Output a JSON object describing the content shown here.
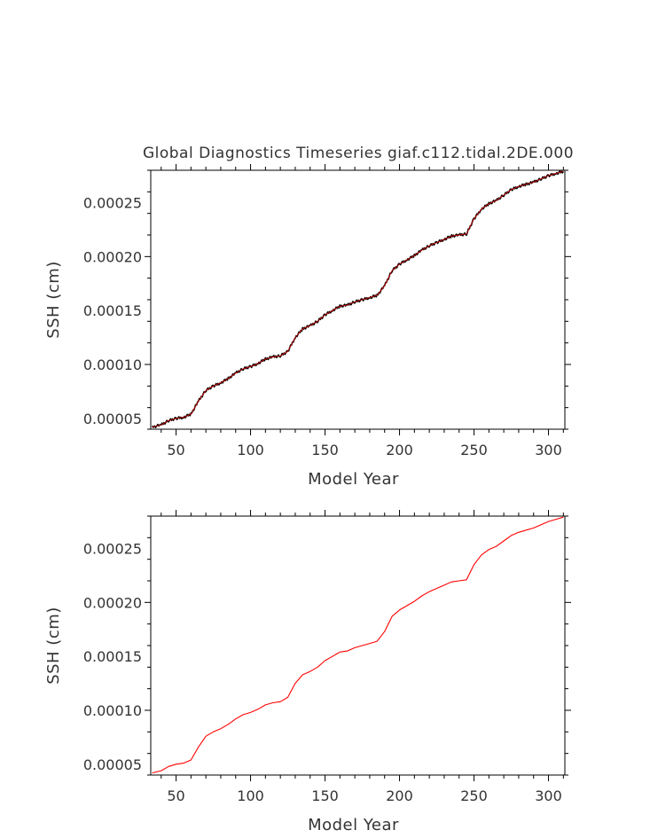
{
  "chart_data": [
    {
      "type": "line",
      "title": "Global Diagnostics Timeseries giaf.c112.tidal.2DE.000",
      "xlabel": "Model Year",
      "ylabel": "SSH (cm)",
      "xlim": [
        33,
        311
      ],
      "ylim": [
        4e-05,
        0.00028
      ],
      "x_ticks": [
        50,
        100,
        150,
        200,
        250,
        300
      ],
      "x_tick_labels": [
        "50",
        "100",
        "150",
        "200",
        "250",
        "300"
      ],
      "y_ticks": [
        5e-05,
        0.0001,
        0.00015,
        0.0002,
        0.00025
      ],
      "y_tick_labels": [
        "0.00005",
        "0.00010",
        "0.00015",
        "0.00020",
        "0.00025"
      ],
      "grid": false,
      "series": [
        {
          "color": "#000000",
          "overlay_color": "#cc0000",
          "x": [
            34,
            40,
            45,
            50,
            55,
            60,
            65,
            70,
            75,
            80,
            85,
            90,
            95,
            100,
            105,
            110,
            115,
            120,
            125,
            130,
            135,
            140,
            145,
            150,
            155,
            160,
            165,
            170,
            175,
            180,
            185,
            190,
            195,
            200,
            205,
            210,
            215,
            220,
            225,
            230,
            235,
            240,
            245,
            250,
            255,
            260,
            265,
            270,
            275,
            280,
            285,
            290,
            295,
            300,
            305,
            310
          ],
          "y": [
            4.2e-05,
            4.4e-05,
            4.8e-05,
            5e-05,
            5.1e-05,
            5.4e-05,
            6.6e-05,
            7.6e-05,
            8e-05,
            8.3e-05,
            8.7e-05,
            9.2e-05,
            9.6e-05,
            9.8e-05,
            0.000101,
            0.000105,
            0.000107,
            0.000108,
            0.000112,
            0.000125,
            0.000133,
            0.000136,
            0.00014,
            0.000146,
            0.00015,
            0.000154,
            0.000155,
            0.000158,
            0.00016,
            0.000162,
            0.000164,
            0.000173,
            0.000187,
            0.000193,
            0.000197,
            0.000201,
            0.000206,
            0.00021,
            0.000213,
            0.000216,
            0.000219,
            0.00022,
            0.000221,
            0.000235,
            0.000244,
            0.000249,
            0.000252,
            0.000257,
            0.000262,
            0.000265,
            0.000267,
            0.000269,
            0.000272,
            0.000275,
            0.000277,
            0.000279
          ]
        }
      ]
    },
    {
      "type": "line",
      "xlabel": "Model Year",
      "ylabel": "SSH (cm)",
      "xlim": [
        33,
        311
      ],
      "ylim": [
        4e-05,
        0.00028
      ],
      "x_ticks": [
        50,
        100,
        150,
        200,
        250,
        300
      ],
      "x_tick_labels": [
        "50",
        "100",
        "150",
        "200",
        "250",
        "300"
      ],
      "y_ticks": [
        5e-05,
        0.0001,
        0.00015,
        0.0002,
        0.00025
      ],
      "y_tick_labels": [
        "0.00005",
        "0.00010",
        "0.00015",
        "0.00020",
        "0.00025"
      ],
      "grid": false,
      "series": [
        {
          "color": "#ff0000",
          "x": [
            34,
            40,
            45,
            50,
            55,
            60,
            65,
            70,
            75,
            80,
            85,
            90,
            95,
            100,
            105,
            110,
            115,
            120,
            125,
            130,
            135,
            140,
            145,
            150,
            155,
            160,
            165,
            170,
            175,
            180,
            185,
            190,
            195,
            200,
            205,
            210,
            215,
            220,
            225,
            230,
            235,
            240,
            245,
            250,
            255,
            260,
            265,
            270,
            275,
            280,
            285,
            290,
            295,
            300,
            305,
            310
          ],
          "y": [
            4.2e-05,
            4.4e-05,
            4.8e-05,
            5e-05,
            5.1e-05,
            5.4e-05,
            6.6e-05,
            7.6e-05,
            8e-05,
            8.3e-05,
            8.7e-05,
            9.2e-05,
            9.6e-05,
            9.8e-05,
            0.000101,
            0.000105,
            0.000107,
            0.000108,
            0.000112,
            0.000125,
            0.000133,
            0.000136,
            0.00014,
            0.000146,
            0.00015,
            0.000154,
            0.000155,
            0.000158,
            0.00016,
            0.000162,
            0.000164,
            0.000173,
            0.000187,
            0.000193,
            0.000197,
            0.000201,
            0.000206,
            0.00021,
            0.000213,
            0.000216,
            0.000219,
            0.00022,
            0.000221,
            0.000235,
            0.000244,
            0.000249,
            0.000252,
            0.000257,
            0.000262,
            0.000265,
            0.000267,
            0.000269,
            0.000272,
            0.000275,
            0.000277,
            0.000279
          ]
        }
      ]
    }
  ]
}
